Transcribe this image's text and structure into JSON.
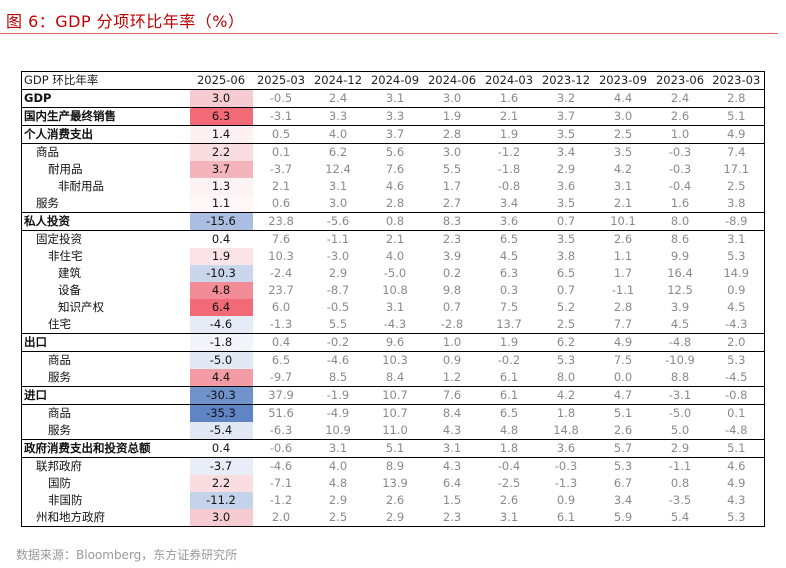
{
  "title": "图 6：GDP 分项环比年率（%）",
  "source": "数据来源：Bloomberg，东方证券研究所",
  "table": {
    "columns": [
      "GDP 环比年率",
      "2025-06",
      "2025-03",
      "2024-12",
      "2024-09",
      "2024-06",
      "2024-03",
      "2023-12",
      "2023-09",
      "2023-06",
      "2023-03"
    ],
    "rows": [
      {
        "label": "GDP",
        "level": 0,
        "sep": true,
        "values": [
          "3.0",
          "-0.5",
          "2.4",
          "3.1",
          "3.0",
          "1.6",
          "3.2",
          "4.4",
          "2.4",
          "2.8"
        ],
        "color": "#f6cbd1"
      },
      {
        "label": "国内生产最终销售",
        "level": 0,
        "sep": true,
        "values": [
          "6.3",
          "-3.1",
          "3.3",
          "3.3",
          "1.9",
          "2.1",
          "3.7",
          "3.0",
          "2.6",
          "5.1"
        ],
        "color": "#f26a76"
      },
      {
        "label": "个人消费支出",
        "level": 0,
        "sep": true,
        "values": [
          "1.4",
          "0.5",
          "4.0",
          "3.7",
          "2.8",
          "1.9",
          "3.5",
          "2.5",
          "1.0",
          "4.9"
        ],
        "color": "#fdf1f2"
      },
      {
        "label": "商品",
        "level": 1,
        "sep": true,
        "values": [
          "2.2",
          "0.1",
          "6.2",
          "5.6",
          "3.0",
          "-1.2",
          "3.4",
          "3.5",
          "-0.3",
          "7.4"
        ],
        "color": "#f9dde1"
      },
      {
        "label": "耐用品",
        "level": 2,
        "sep": false,
        "values": [
          "3.7",
          "-3.7",
          "12.4",
          "7.6",
          "5.5",
          "-1.8",
          "2.9",
          "4.2",
          "-0.3",
          "17.1"
        ],
        "color": "#f4b4bb"
      },
      {
        "label": "非耐用品",
        "level": 3,
        "sep": false,
        "values": [
          "1.3",
          "2.1",
          "3.1",
          "4.6",
          "1.7",
          "-0.8",
          "3.6",
          "3.1",
          "-0.4",
          "2.5"
        ],
        "color": "#fdf3f4"
      },
      {
        "label": "服务",
        "level": 1,
        "sep": false,
        "values": [
          "1.1",
          "0.6",
          "3.0",
          "2.8",
          "2.7",
          "3.4",
          "3.5",
          "2.1",
          "1.6",
          "3.8"
        ],
        "color": "#fef6f7"
      },
      {
        "label": "私人投资",
        "level": 0,
        "sep": true,
        "values": [
          "-15.6",
          "23.8",
          "-5.6",
          "0.8",
          "8.3",
          "3.6",
          "0.7",
          "10.1",
          "8.0",
          "-8.9"
        ],
        "color": "#a9bee0"
      },
      {
        "label": "固定投资",
        "level": 1,
        "sep": true,
        "values": [
          "0.4",
          "7.6",
          "-1.1",
          "2.1",
          "2.3",
          "6.5",
          "3.5",
          "2.6",
          "8.6",
          "3.1"
        ],
        "color": "#ffffff"
      },
      {
        "label": "非住宅",
        "level": 2,
        "sep": false,
        "values": [
          "1.9",
          "10.3",
          "-3.0",
          "4.0",
          "3.9",
          "4.5",
          "3.8",
          "1.1",
          "9.9",
          "5.3"
        ],
        "color": "#fae4e7"
      },
      {
        "label": "建筑",
        "level": 3,
        "sep": false,
        "values": [
          "-10.3",
          "-2.4",
          "2.9",
          "-5.0",
          "0.2",
          "6.3",
          "6.5",
          "1.7",
          "16.4",
          "14.9"
        ],
        "color": "#c9d6ec"
      },
      {
        "label": "设备",
        "level": 3,
        "sep": false,
        "values": [
          "4.8",
          "23.7",
          "-8.7",
          "10.8",
          "9.8",
          "0.3",
          "0.7",
          "-1.1",
          "12.5",
          "0.9"
        ],
        "color": "#f28c96"
      },
      {
        "label": "知识产权",
        "level": 3,
        "sep": false,
        "values": [
          "6.4",
          "6.0",
          "-0.5",
          "3.1",
          "0.7",
          "7.5",
          "5.2",
          "2.8",
          "3.9",
          "4.5"
        ],
        "color": "#f26a76"
      },
      {
        "label": "住宅",
        "level": 2,
        "sep": false,
        "values": [
          "-4.6",
          "-1.3",
          "5.5",
          "-4.3",
          "-2.8",
          "13.7",
          "2.5",
          "7.7",
          "4.5",
          "-4.3"
        ],
        "color": "#e6ecf6"
      },
      {
        "label": "出口",
        "level": 0,
        "sep": true,
        "values": [
          "-1.8",
          "0.4",
          "-0.2",
          "9.6",
          "1.0",
          "1.9",
          "6.2",
          "4.9",
          "-4.8",
          "2.0"
        ],
        "color": "#f1f4fa"
      },
      {
        "label": "商品",
        "level": 2,
        "sep": true,
        "values": [
          "-5.0",
          "6.5",
          "-4.6",
          "10.3",
          "0.9",
          "-0.2",
          "5.3",
          "7.5",
          "-10.9",
          "5.3"
        ],
        "color": "#e2e9f4"
      },
      {
        "label": "服务",
        "level": 2,
        "sep": false,
        "values": [
          "4.4",
          "-9.7",
          "8.5",
          "8.4",
          "1.2",
          "6.1",
          "8.0",
          "0.0",
          "8.8",
          "-4.5"
        ],
        "color": "#f49ca5"
      },
      {
        "label": "进口",
        "level": 0,
        "sep": true,
        "values": [
          "-30.3",
          "37.9",
          "-1.9",
          "10.7",
          "7.6",
          "6.1",
          "4.2",
          "4.7",
          "-3.1",
          "-0.8"
        ],
        "color": "#7093cc"
      },
      {
        "label": "商品",
        "level": 2,
        "sep": true,
        "values": [
          "-35.3",
          "51.6",
          "-4.9",
          "10.7",
          "8.4",
          "6.5",
          "1.8",
          "5.1",
          "-5.0",
          "0.1"
        ],
        "color": "#5f85c5"
      },
      {
        "label": "服务",
        "level": 2,
        "sep": false,
        "values": [
          "-5.4",
          "-6.3",
          "10.9",
          "11.0",
          "4.3",
          "4.8",
          "14.8",
          "2.6",
          "5.0",
          "-4.8"
        ],
        "color": "#e1e8f4"
      },
      {
        "label": "政府消费支出和投资总额",
        "level": 0,
        "sep": true,
        "values": [
          "0.4",
          "-0.6",
          "3.1",
          "5.1",
          "3.1",
          "1.8",
          "3.6",
          "5.7",
          "2.9",
          "5.1"
        ],
        "color": "#ffffff"
      },
      {
        "label": "联邦政府",
        "level": 1,
        "sep": true,
        "values": [
          "-3.7",
          "-4.6",
          "4.0",
          "8.9",
          "4.3",
          "-0.4",
          "-0.3",
          "5.3",
          "-1.1",
          "4.6"
        ],
        "color": "#e8edf7"
      },
      {
        "label": "国防",
        "level": 2,
        "sep": false,
        "values": [
          "2.2",
          "-7.1",
          "4.8",
          "13.9",
          "6.4",
          "-2.5",
          "-1.3",
          "6.7",
          "0.8",
          "4.9"
        ],
        "color": "#f9dde1"
      },
      {
        "label": "非国防",
        "level": 2,
        "sep": false,
        "values": [
          "-11.2",
          "-1.2",
          "2.9",
          "2.6",
          "1.5",
          "2.6",
          "0.9",
          "3.4",
          "-3.5",
          "4.3"
        ],
        "color": "#c5d3ea"
      },
      {
        "label": "州和地方政府",
        "level": 1,
        "sep": false,
        "values": [
          "3.0",
          "2.0",
          "2.5",
          "2.9",
          "2.3",
          "3.1",
          "6.1",
          "5.9",
          "5.4",
          "5.3"
        ],
        "color": "#f6cbd1"
      }
    ]
  }
}
